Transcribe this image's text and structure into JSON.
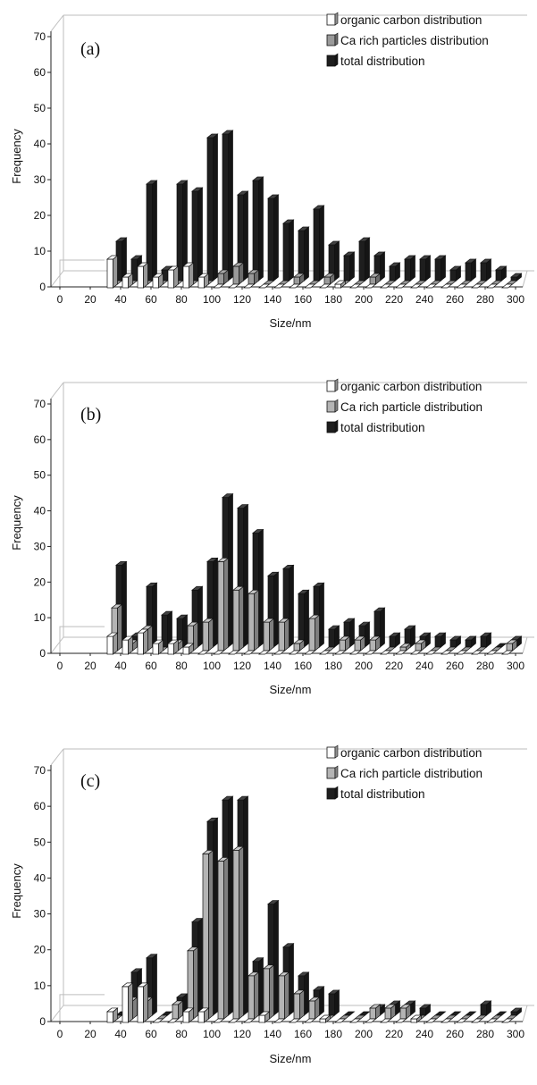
{
  "chart_data": [
    {
      "type": "bar",
      "panel_label": "(a)",
      "xlabel": "Size/nm",
      "ylabel": "Frequency",
      "x_ticks": [
        "0",
        "20",
        "40",
        "60",
        "80",
        "100",
        "120",
        "140",
        "160",
        "180",
        "200",
        "220",
        "240",
        "260",
        "280",
        "300"
      ],
      "y_ticks": [
        "0",
        "10",
        "20",
        "30",
        "40",
        "50",
        "60",
        "70"
      ],
      "ylim": [
        0,
        70
      ],
      "categories": [
        "35",
        "45",
        "55",
        "65",
        "75",
        "85",
        "95",
        "105",
        "115",
        "125",
        "135",
        "145",
        "155",
        "165",
        "175",
        "185",
        "195",
        "205",
        "215",
        "225",
        "235",
        "245",
        "255",
        "265",
        "275",
        "285",
        "295"
      ],
      "legend": [
        "organic carbon distribution",
        "Ca rich particles distribution",
        "total distribution"
      ],
      "series": [
        {
          "name": "organic carbon distribution",
          "color": "#ffffff",
          "values": [
            8,
            3,
            6,
            3,
            5,
            6,
            3,
            0,
            0,
            0,
            0,
            0,
            0,
            0,
            0,
            1,
            0,
            0,
            0,
            0,
            0,
            0,
            0,
            0,
            0,
            0,
            0
          ]
        },
        {
          "name": "Ca rich particles distribution",
          "color": "#9a9a9a",
          "values": [
            0,
            0,
            0,
            0,
            0,
            0,
            0,
            3,
            5,
            3,
            0,
            0,
            2,
            0,
            2,
            0,
            0,
            2,
            0,
            0,
            0,
            0,
            0,
            0,
            0,
            0,
            0
          ]
        },
        {
          "name": "total distribution",
          "color": "#1e1e1e",
          "values": [
            11,
            6,
            27,
            3,
            27,
            25,
            40,
            41,
            24,
            28,
            23,
            16,
            14,
            20,
            10,
            7,
            11,
            7,
            4,
            6,
            6,
            6,
            3,
            5,
            5,
            3,
            1
          ]
        }
      ]
    },
    {
      "type": "bar",
      "panel_label": "(b)",
      "xlabel": "Size/nm",
      "ylabel": "Frequency",
      "x_ticks": [
        "0",
        "20",
        "40",
        "60",
        "80",
        "100",
        "120",
        "140",
        "160",
        "180",
        "200",
        "220",
        "240",
        "260",
        "280",
        "300"
      ],
      "y_ticks": [
        "0",
        "10",
        "20",
        "30",
        "40",
        "50",
        "60",
        "70"
      ],
      "ylim": [
        0,
        70
      ],
      "categories": [
        "35",
        "45",
        "55",
        "65",
        "75",
        "85",
        "95",
        "105",
        "115",
        "125",
        "135",
        "145",
        "155",
        "165",
        "175",
        "185",
        "195",
        "205",
        "215",
        "225",
        "235",
        "245",
        "255",
        "265",
        "275",
        "285",
        "295"
      ],
      "legend": [
        "organic carbon distribution",
        "Ca rich particle distribution",
        "total distribution"
      ],
      "series": [
        {
          "name": "organic carbon distribution",
          "color": "#ffffff",
          "values": [
            5,
            4,
            6,
            3,
            3,
            2,
            0,
            0,
            0,
            0,
            0,
            0,
            0,
            0,
            0,
            0,
            0,
            0,
            0,
            0,
            0,
            0,
            0,
            0,
            0,
            0,
            0
          ]
        },
        {
          "name": "Ca rich particle distribution",
          "color": "#b4b4b4",
          "values": [
            12,
            2,
            6,
            0,
            2,
            7,
            8,
            25,
            17,
            16,
            8,
            8,
            2,
            9,
            0,
            3,
            3,
            3,
            0,
            1,
            2,
            0,
            0,
            0,
            0,
            0,
            2
          ]
        },
        {
          "name": "total distribution",
          "color": "#1e1e1e",
          "values": [
            23,
            3,
            17,
            9,
            8,
            16,
            24,
            42,
            39,
            32,
            20,
            22,
            15,
            17,
            5,
            7,
            6,
            10,
            3,
            5,
            3,
            3,
            2,
            2,
            3,
            0,
            2
          ]
        }
      ]
    },
    {
      "type": "bar",
      "panel_label": "(c)",
      "xlabel": "Size/nm",
      "ylabel": "Frequency",
      "x_ticks": [
        "0",
        "20",
        "40",
        "60",
        "80",
        "100",
        "120",
        "140",
        "160",
        "180",
        "200",
        "220",
        "240",
        "260",
        "280",
        "300"
      ],
      "y_ticks": [
        "0",
        "10",
        "20",
        "30",
        "40",
        "50",
        "60",
        "70"
      ],
      "ylim": [
        0,
        70
      ],
      "categories": [
        "35",
        "45",
        "55",
        "65",
        "75",
        "85",
        "95",
        "105",
        "115",
        "125",
        "135",
        "145",
        "155",
        "165",
        "175",
        "185",
        "195",
        "205",
        "215",
        "225",
        "235",
        "245",
        "255",
        "265",
        "275",
        "285",
        "295"
      ],
      "legend": [
        "organic carbon distribution",
        "Ca rich particle distribution",
        "total distribution"
      ],
      "series": [
        {
          "name": "organic carbon distribution",
          "color": "#ffffff",
          "values": [
            3,
            10,
            10,
            0,
            0,
            3,
            3,
            0,
            0,
            0,
            2,
            0,
            0,
            0,
            1,
            0,
            0,
            0,
            0,
            0,
            1,
            0,
            0,
            0,
            0,
            0,
            0
          ]
        },
        {
          "name": "Ca rich particle distribution",
          "color": "#b4b4b4",
          "values": [
            0,
            5,
            5,
            0,
            4,
            19,
            46,
            44,
            47,
            12,
            14,
            12,
            7,
            5,
            0,
            0,
            0,
            3,
            3,
            3,
            0,
            0,
            0,
            0,
            0,
            0,
            0
          ]
        },
        {
          "name": "total distribution",
          "color": "#1e1e1e",
          "values": [
            0,
            12,
            16,
            0,
            5,
            26,
            54,
            60,
            60,
            15,
            31,
            19,
            11,
            7,
            6,
            0,
            0,
            2,
            3,
            3,
            2,
            0,
            0,
            0,
            3,
            0,
            1
          ]
        }
      ]
    }
  ]
}
